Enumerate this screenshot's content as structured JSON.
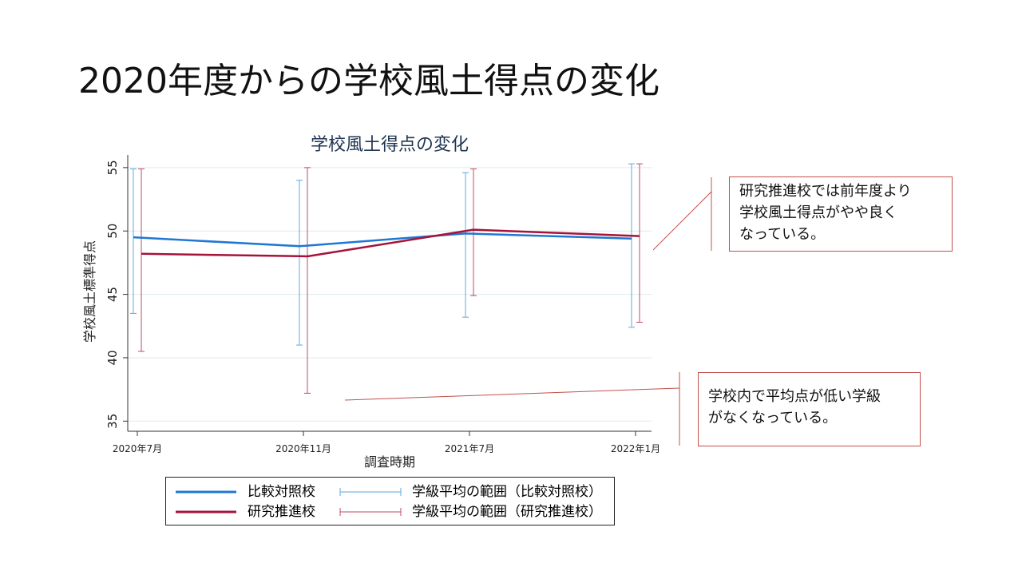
{
  "slide_title": "2020年度からの学校風土得点の変化",
  "notes": [
    "研究推進校では前年度より\n学校風土得点がやや良く\nなっている。",
    "学校内で平均点が低い学級\nがなくなっている。"
  ],
  "colors": {
    "series_comparison": "#1f77d4",
    "series_research": "#a5133b",
    "range_comparison": "#5ba8e0",
    "range_research": "#c04a66",
    "note_border": "#c0504d",
    "grid": "#dfe9ef",
    "chart_title": "#1f3552"
  },
  "chart_data": {
    "type": "line",
    "title": "学校風土得点の変化",
    "xlabel": "調査時期",
    "ylabel": "学校風土標準得点",
    "categories": [
      "2020年7月",
      "2020年11月",
      "2021年7月",
      "2022年1月"
    ],
    "yticks": [
      35,
      40,
      45,
      50,
      55
    ],
    "ylim": [
      34.2,
      56
    ],
    "grid": true,
    "legend_position": "bottom",
    "series": [
      {
        "name": "比較対照校",
        "values": [
          49.5,
          48.8,
          49.8,
          49.4
        ]
      },
      {
        "name": "研究推進校",
        "values": [
          48.2,
          48.0,
          50.1,
          49.6
        ]
      }
    ],
    "error_bars": [
      {
        "name": "学級平均の範囲（比較対照校）",
        "low": [
          43.5,
          41.0,
          43.2,
          42.4
        ],
        "high": [
          54.9,
          54.0,
          54.6,
          55.3
        ]
      },
      {
        "name": "学級平均の範囲（研究推進校）",
        "low": [
          40.5,
          37.2,
          44.9,
          42.8
        ],
        "high": [
          54.9,
          55.0,
          54.9,
          55.3
        ]
      }
    ]
  }
}
